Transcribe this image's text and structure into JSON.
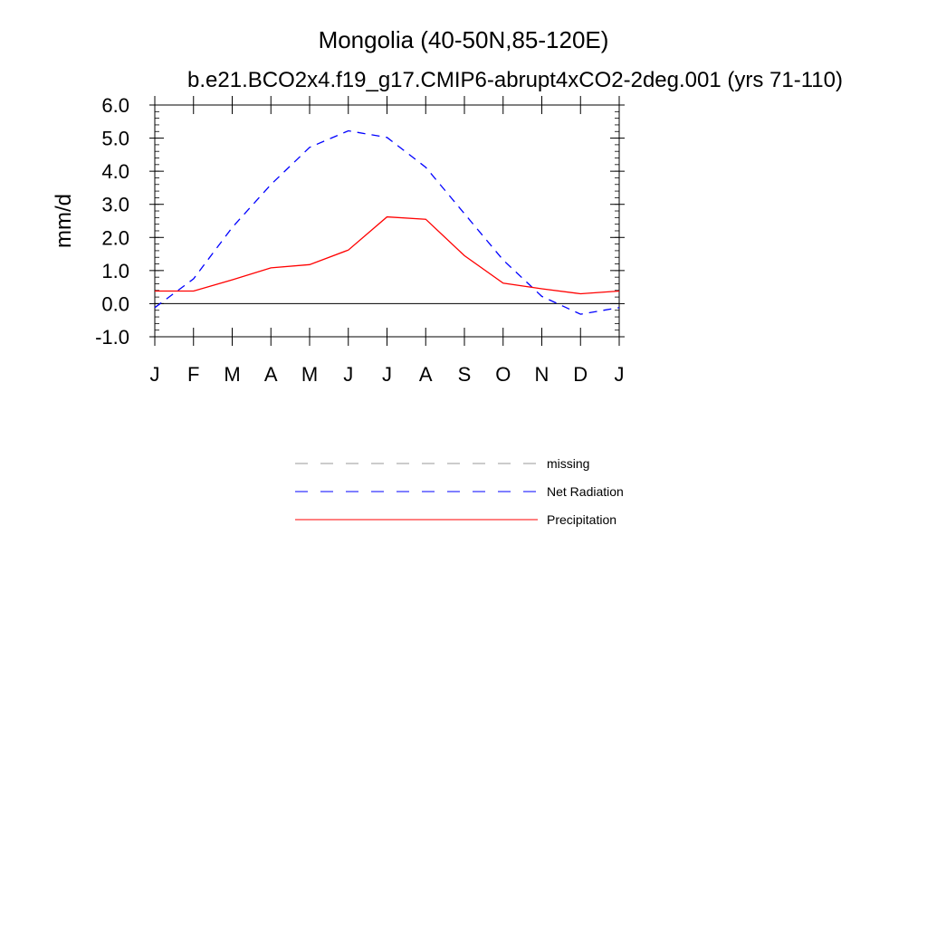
{
  "chart_data": {
    "type": "line",
    "title": "Mongolia (40-50N,85-120E)",
    "subtitle": "b.e21.BCO2x4.f19_g17.CMIP6-abrupt4xCO2-2deg.001 (yrs 71-110)",
    "xlabel": "",
    "ylabel": "mm/d",
    "categories": [
      "J",
      "F",
      "M",
      "A",
      "M",
      "J",
      "J",
      "A",
      "S",
      "O",
      "N",
      "D",
      "J"
    ],
    "ylim": [
      -1.0,
      6.0
    ],
    "yticks": [
      -1.0,
      0.0,
      1.0,
      2.0,
      3.0,
      4.0,
      5.0,
      6.0
    ],
    "ytick_labels": [
      "-1.0",
      "0.0",
      "1.0",
      "2.0",
      "3.0",
      "4.0",
      "5.0",
      "6.0"
    ],
    "series": [
      {
        "name": "Net Radiation",
        "color": "#0000ff",
        "style": "dashed",
        "values": [
          -0.12,
          0.75,
          2.3,
          3.6,
          4.72,
          5.22,
          5.02,
          4.12,
          2.72,
          1.32,
          0.22,
          -0.32,
          -0.12
        ]
      },
      {
        "name": "Precipitation",
        "color": "#ff0000",
        "style": "solid",
        "values": [
          0.38,
          0.38,
          0.72,
          1.08,
          1.18,
          1.62,
          2.62,
          2.55,
          1.45,
          0.62,
          0.45,
          0.3,
          0.38
        ]
      }
    ],
    "legend": [
      {
        "label": "missing",
        "color": "#999999",
        "style": "dashed"
      },
      {
        "label": "Net Radiation",
        "color": "#0000ff",
        "style": "dashed"
      },
      {
        "label": "Precipitation",
        "color": "#ff0000",
        "style": "solid"
      }
    ],
    "legend_position": "below"
  }
}
